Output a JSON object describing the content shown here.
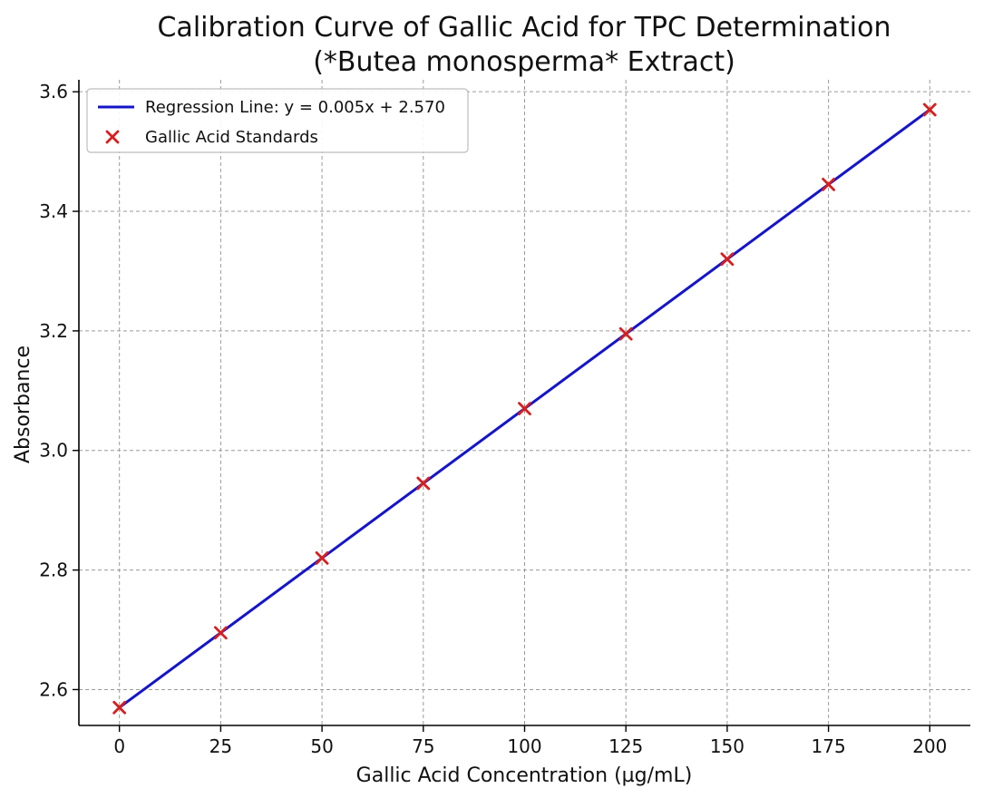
{
  "chart_data": {
    "type": "scatter",
    "title": "Calibration Curve of Gallic Acid for TPC Determination",
    "subtitle": "(*Butea monosperma* Extract)",
    "xlabel": "Gallic Acid Concentration (µg/mL)",
    "ylabel": "Absorbance",
    "xlim": [
      -10,
      210
    ],
    "ylim": [
      2.54,
      3.62
    ],
    "x_ticks": [
      0,
      25,
      50,
      75,
      100,
      125,
      150,
      175,
      200
    ],
    "x_tick_labels": [
      "0",
      "25",
      "50",
      "75",
      "100",
      "125",
      "150",
      "175",
      "200"
    ],
    "y_ticks": [
      2.6,
      2.8,
      3.0,
      3.2,
      3.4,
      3.6
    ],
    "y_tick_labels": [
      "2.6",
      "2.8",
      "3.0",
      "3.2",
      "3.4",
      "3.6"
    ],
    "grid": true,
    "legend_position": "top-left",
    "series": [
      {
        "name": "Regression Line: y = 0.005x + 2.570",
        "kind": "line",
        "color": "#1515c8",
        "x": [
          0,
          200
        ],
        "y": [
          2.57,
          3.57
        ]
      },
      {
        "name": "Gallic Acid Standards",
        "kind": "scatter",
        "marker": "x",
        "color": "#d42020",
        "x": [
          0,
          25,
          50,
          75,
          100,
          125,
          150,
          175,
          200
        ],
        "y": [
          2.57,
          2.695,
          2.82,
          2.945,
          3.07,
          3.195,
          3.32,
          3.445,
          3.57
        ]
      }
    ]
  }
}
